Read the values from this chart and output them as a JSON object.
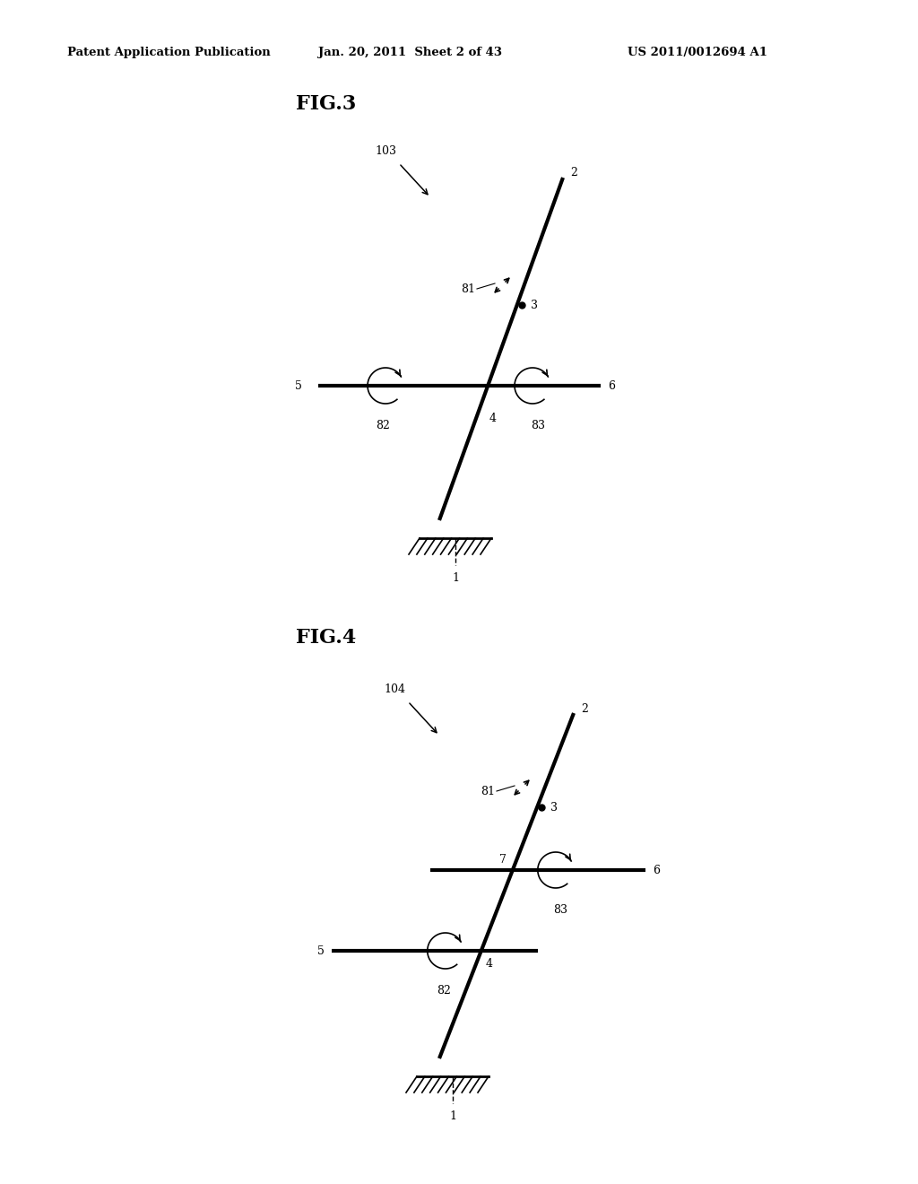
{
  "background_color": "#ffffff",
  "header_text": "Patent Application Publication",
  "header_date": "Jan. 20, 2011  Sheet 2 of 43",
  "header_patent": "US 2011/0012694 A1",
  "fig3_label": "FIG.3",
  "fig3_ref": "103",
  "fig4_label": "FIG.4",
  "fig4_ref": "104"
}
